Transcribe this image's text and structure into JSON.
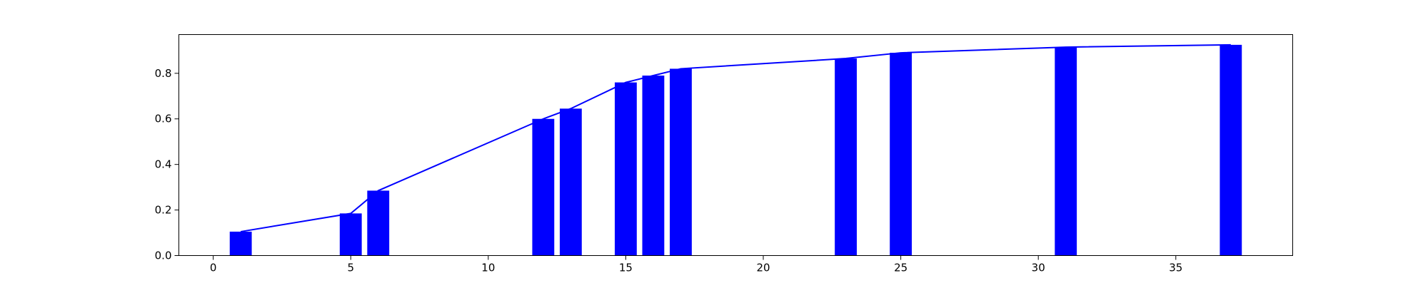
{
  "chart_data": {
    "type": "bar",
    "title": "",
    "xlabel": "",
    "ylabel": "",
    "xlim": [
      -1.25,
      39.25
    ],
    "ylim": [
      0,
      0.97
    ],
    "grid": false,
    "legend": "none",
    "bar_width": 0.8,
    "x_ticks": [
      0,
      5,
      10,
      15,
      20,
      25,
      30,
      35
    ],
    "y_ticks": [
      0.0,
      0.2,
      0.4,
      0.6,
      0.8
    ],
    "x_tick_labels": [
      "0",
      "5",
      "10",
      "15",
      "20",
      "25",
      "30",
      "35"
    ],
    "y_tick_labels": [
      "0.0",
      "0.2",
      "0.4",
      "0.6",
      "0.8"
    ],
    "bars": {
      "x": [
        1,
        5,
        6,
        12,
        13,
        15,
        16,
        17,
        23,
        25,
        31,
        37
      ],
      "values": [
        0.105,
        0.185,
        0.285,
        0.6,
        0.645,
        0.76,
        0.79,
        0.82,
        0.865,
        0.89,
        0.915,
        0.925
      ],
      "color": "#0000ff"
    },
    "line": {
      "x": [
        1,
        5,
        6,
        12,
        13,
        15,
        16,
        17,
        23,
        25,
        31,
        37
      ],
      "values": [
        0.105,
        0.185,
        0.285,
        0.6,
        0.645,
        0.76,
        0.79,
        0.82,
        0.865,
        0.89,
        0.915,
        0.925
      ],
      "color": "#0000ff"
    }
  }
}
